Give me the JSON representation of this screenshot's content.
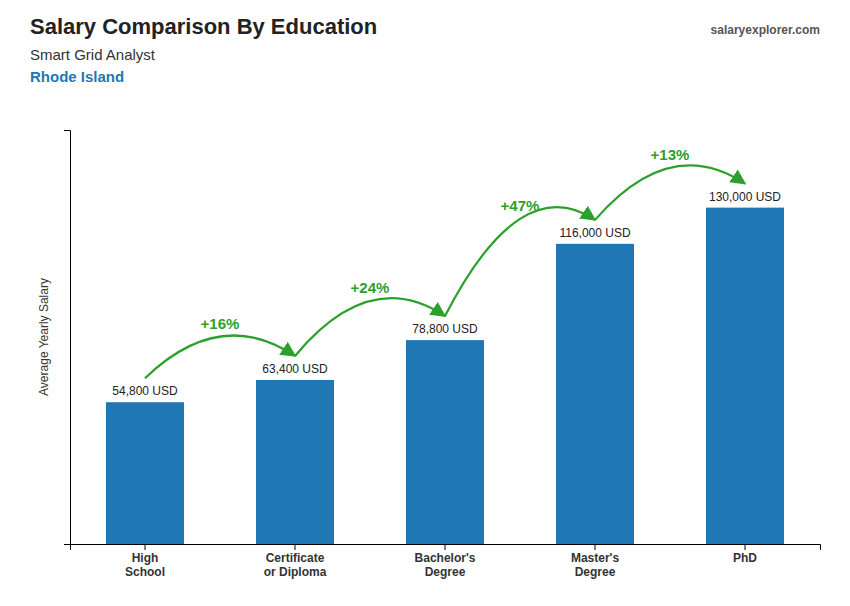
{
  "chart_data": {
    "type": "bar",
    "title": "Salary Comparison By Education",
    "subtitle": [
      "Smart Grid Analyst",
      "Rhode Island"
    ],
    "source": "salaryexplorer.com",
    "ylabel": "Average Yearly Salary",
    "categories": [
      "High\nSchool",
      "Certificate\nor Diploma",
      "Bachelor's\nDegree",
      "Master's\nDegree",
      "PhD"
    ],
    "values": [
      54800,
      63400,
      78800,
      116000,
      130000
    ],
    "value_labels": [
      "54,800 USD",
      "63,400 USD",
      "78,800 USD",
      "116,000 USD",
      "130,000 USD"
    ],
    "data_labels": true,
    "annotations": [
      "+16%",
      "+24%",
      "+47%",
      "+13%"
    ],
    "ylim": [
      0,
      160000
    ],
    "yticks": [],
    "tick_labels": "x",
    "grid": false
  }
}
